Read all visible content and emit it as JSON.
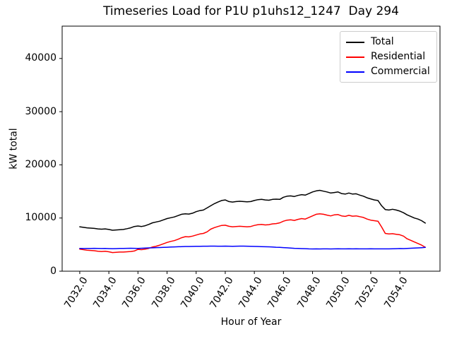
{
  "figure": {
    "title": "Timeseries Load for P1U p1uhs12_1247  Day 294",
    "xlabel": "Hour of Year",
    "ylabel": "kW total",
    "background_color": "#ffffff",
    "text_color": "#000000",
    "legend_border_color": "#cccccc"
  },
  "chart_data": {
    "type": "line",
    "title": "Timeseries Load for P1U p1uhs12_1247  Day 294",
    "xlabel": "Hour of Year",
    "ylabel": "kW total",
    "grid": false,
    "legend_position": "upper right",
    "xlim": [
      7030.79,
      7056.76
    ],
    "ylim": [
      0,
      46082
    ],
    "xticks": [
      7032,
      7034,
      7036,
      7038,
      7040,
      7042,
      7044,
      7046,
      7048,
      7050,
      7052,
      7054
    ],
    "xtick_labels": [
      "7032.0",
      "7034.0",
      "7036.0",
      "7038.0",
      "7040.0",
      "7042.0",
      "7044.0",
      "7046.0",
      "7048.0",
      "7050.0",
      "7052.0",
      "7054.0"
    ],
    "yticks": [
      0,
      10000,
      20000,
      30000,
      40000
    ],
    "ytick_labels": [
      "0",
      "10000",
      "20000",
      "30000",
      "40000"
    ],
    "x": [
      7032.0,
      7032.25,
      7032.5,
      7032.75,
      7033.0,
      7033.25,
      7033.5,
      7033.75,
      7034.0,
      7034.25,
      7034.5,
      7034.75,
      7035.0,
      7035.25,
      7035.5,
      7035.75,
      7036.0,
      7036.25,
      7036.5,
      7036.75,
      7037.0,
      7037.25,
      7037.5,
      7037.75,
      7038.0,
      7038.25,
      7038.5,
      7038.75,
      7039.0,
      7039.25,
      7039.5,
      7039.75,
      7040.0,
      7040.25,
      7040.5,
      7040.75,
      7041.0,
      7041.25,
      7041.5,
      7041.75,
      7042.0,
      7042.25,
      7042.5,
      7042.75,
      7043.0,
      7043.25,
      7043.5,
      7043.75,
      7044.0,
      7044.25,
      7044.5,
      7044.75,
      7045.0,
      7045.25,
      7045.5,
      7045.75,
      7046.0,
      7046.25,
      7046.5,
      7046.75,
      7047.0,
      7047.25,
      7047.5,
      7047.75,
      7048.0,
      7048.25,
      7048.5,
      7048.75,
      7049.0,
      7049.25,
      7049.5,
      7049.75,
      7050.0,
      7050.25,
      7050.5,
      7050.75,
      7051.0,
      7051.25,
      7051.5,
      7051.75,
      7052.0,
      7052.25,
      7052.5,
      7052.75,
      7053.0,
      7053.25,
      7053.5,
      7053.75,
      7054.0,
      7054.25,
      7054.5,
      7054.75,
      7055.0,
      7055.25,
      7055.5,
      7055.75
    ],
    "series": [
      {
        "name": "Total",
        "color": "#000000",
        "values": [
          8350,
          8250,
          8150,
          8100,
          8050,
          7950,
          7900,
          7950,
          7850,
          7700,
          7750,
          7800,
          7850,
          8000,
          8150,
          8400,
          8500,
          8400,
          8550,
          8800,
          9100,
          9250,
          9400,
          9650,
          9900,
          10050,
          10200,
          10450,
          10700,
          10800,
          10750,
          10900,
          11200,
          11400,
          11500,
          11900,
          12300,
          12700,
          13000,
          13300,
          13400,
          13100,
          13000,
          13100,
          13150,
          13100,
          13050,
          13100,
          13300,
          13450,
          13500,
          13400,
          13350,
          13500,
          13550,
          13500,
          13900,
          14100,
          14150,
          14050,
          14250,
          14400,
          14300,
          14600,
          14900,
          15100,
          15200,
          15050,
          14900,
          14700,
          14800,
          14900,
          14600,
          14500,
          14700,
          14500,
          14550,
          14300,
          14100,
          13800,
          13600,
          13400,
          13300,
          12300,
          11600,
          11500,
          11650,
          11500,
          11300,
          11000,
          10600,
          10300,
          10000,
          9800,
          9500,
          9050
        ]
      },
      {
        "name": "Residential",
        "color": "#ff0000",
        "values": [
          4150,
          4050,
          3950,
          3900,
          3850,
          3750,
          3700,
          3750,
          3650,
          3500,
          3550,
          3600,
          3600,
          3650,
          3700,
          3800,
          4100,
          4050,
          4150,
          4300,
          4550,
          4700,
          4900,
          5150,
          5400,
          5600,
          5750,
          6000,
          6300,
          6500,
          6450,
          6600,
          6800,
          7000,
          7100,
          7400,
          7900,
          8200,
          8400,
          8600,
          8650,
          8450,
          8350,
          8400,
          8450,
          8400,
          8350,
          8400,
          8600,
          8750,
          8800,
          8700,
          8750,
          8900,
          8950,
          9100,
          9400,
          9600,
          9650,
          9550,
          9750,
          9900,
          9800,
          10100,
          10400,
          10700,
          10800,
          10700,
          10550,
          10400,
          10600,
          10650,
          10400,
          10300,
          10500,
          10350,
          10400,
          10250,
          10100,
          9800,
          9600,
          9500,
          9400,
          8300,
          7100,
          7000,
          7050,
          6950,
          6850,
          6600,
          6100,
          5800,
          5500,
          5200,
          4900,
          4500
        ]
      },
      {
        "name": "Commercial",
        "color": "#0000ff",
        "values": [
          4270,
          4260,
          4290,
          4280,
          4300,
          4280,
          4260,
          4270,
          4250,
          4230,
          4250,
          4270,
          4280,
          4300,
          4310,
          4300,
          4290,
          4310,
          4350,
          4380,
          4400,
          4430,
          4450,
          4480,
          4500,
          4540,
          4570,
          4600,
          4620,
          4650,
          4650,
          4660,
          4680,
          4690,
          4700,
          4700,
          4710,
          4720,
          4700,
          4700,
          4720,
          4700,
          4690,
          4700,
          4710,
          4720,
          4700,
          4690,
          4660,
          4650,
          4620,
          4600,
          4580,
          4550,
          4500,
          4470,
          4440,
          4400,
          4350,
          4300,
          4280,
          4250,
          4230,
          4200,
          4180,
          4200,
          4180,
          4190,
          4200,
          4180,
          4200,
          4210,
          4200,
          4190,
          4210,
          4200,
          4210,
          4200,
          4190,
          4200,
          4210,
          4200,
          4190,
          4200,
          4190,
          4200,
          4220,
          4240,
          4260,
          4250,
          4290,
          4310,
          4340,
          4380,
          4420,
          4470
        ]
      }
    ]
  }
}
